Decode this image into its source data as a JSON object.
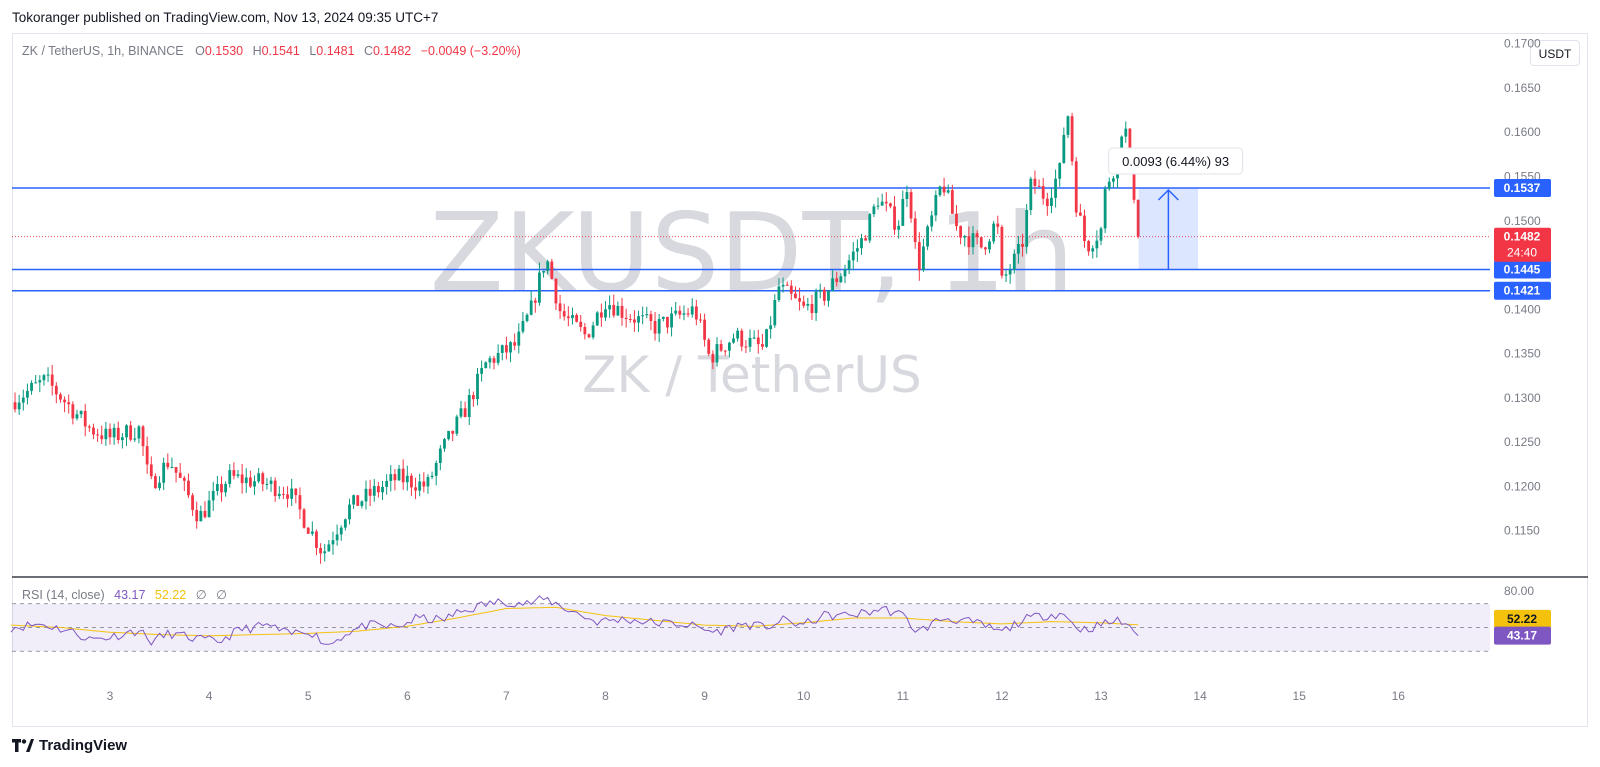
{
  "publisher": "Tokoranger published on TradingView.com, Nov 13, 2024 09:35 UTC+7",
  "legend": {
    "symbol": "ZK / TetherUS, 1h, BINANCE",
    "o_label": "O",
    "o": "0.1530",
    "h_label": "H",
    "h": "0.1541",
    "l_label": "L",
    "l": "0.1481",
    "c_label": "C",
    "c": "0.1482",
    "change": "−0.0049 (−3.20%)"
  },
  "currency": "USDT",
  "watermark": {
    "main": "ZKUSDT, 1h",
    "sub": "ZK / TetherUS"
  },
  "measure_label": "0.0093 (6.44%) 93",
  "countdown": "24:40",
  "rsi_legend": {
    "name": "RSI (14, close)",
    "rsi": "43.17",
    "ma": "52.22",
    "extra1": "∅",
    "extra2": "∅"
  },
  "footer": {
    "brand": "TradingView"
  },
  "colors": {
    "up": "#089981",
    "down": "#f23645",
    "level": "#2962ff",
    "rsi": "#7e57c2",
    "rsi_ma": "#f4c20d"
  },
  "chart_data": {
    "type": "candlestick",
    "interval": "1h",
    "price_axis": {
      "ticks": [
        "0.1700",
        "0.1650",
        "0.1600",
        "0.1550",
        "0.1500",
        "0.1450",
        "0.1400",
        "0.1350",
        "0.1300",
        "0.1250",
        "0.1200",
        "0.1150"
      ],
      "range": [
        0.111,
        0.172
      ]
    },
    "time_axis": {
      "ticks": [
        "3",
        "4",
        "5",
        "6",
        "7",
        "8",
        "9",
        "10",
        "11",
        "12",
        "13",
        "14",
        "15",
        "16"
      ]
    },
    "horizontal_levels": [
      {
        "price": 0.1537,
        "label": "0.1537"
      },
      {
        "price": 0.1445,
        "label": "0.1445"
      },
      {
        "price": 0.1421,
        "label": "0.1421"
      }
    ],
    "last_price": {
      "price": 0.1482,
      "label": "0.1482"
    },
    "price_anchors": [
      [
        2.0,
        0.1295
      ],
      [
        2.35,
        0.132
      ],
      [
        2.8,
        0.1265
      ],
      [
        3.0,
        0.1255
      ],
      [
        3.3,
        0.1265
      ],
      [
        3.4,
        0.12
      ],
      [
        3.6,
        0.123
      ],
      [
        3.9,
        0.1165
      ],
      [
        4.2,
        0.121
      ],
      [
        4.5,
        0.1205
      ],
      [
        4.8,
        0.1195
      ],
      [
        5.15,
        0.1125
      ],
      [
        5.4,
        0.1175
      ],
      [
        5.9,
        0.121
      ],
      [
        6.2,
        0.12
      ],
      [
        6.35,
        0.124
      ],
      [
        6.6,
        0.129
      ],
      [
        6.8,
        0.134
      ],
      [
        7.1,
        0.136
      ],
      [
        7.25,
        0.14
      ],
      [
        7.4,
        0.146
      ],
      [
        7.55,
        0.1395
      ],
      [
        7.8,
        0.137
      ],
      [
        8.0,
        0.141
      ],
      [
        8.2,
        0.1395
      ],
      [
        8.5,
        0.138
      ],
      [
        8.9,
        0.14
      ],
      [
        9.05,
        0.1345
      ],
      [
        9.3,
        0.137
      ],
      [
        9.6,
        0.1355
      ],
      [
        9.75,
        0.1425
      ],
      [
        10.0,
        0.14
      ],
      [
        10.2,
        0.1415
      ],
      [
        10.4,
        0.1445
      ],
      [
        10.6,
        0.148
      ],
      [
        10.75,
        0.1525
      ],
      [
        10.95,
        0.1495
      ],
      [
        11.05,
        0.1545
      ],
      [
        11.15,
        0.1445
      ],
      [
        11.4,
        0.1545
      ],
      [
        11.55,
        0.149
      ],
      [
        11.8,
        0.147
      ],
      [
        11.95,
        0.15
      ],
      [
        12.0,
        0.143
      ],
      [
        12.2,
        0.147
      ],
      [
        12.3,
        0.1545
      ],
      [
        12.45,
        0.1525
      ],
      [
        12.6,
        0.156
      ],
      [
        12.65,
        0.164
      ],
      [
        12.75,
        0.152
      ],
      [
        12.85,
        0.147
      ],
      [
        13.0,
        0.149
      ],
      [
        13.05,
        0.154
      ],
      [
        13.15,
        0.1565
      ],
      [
        13.2,
        0.1605
      ],
      [
        13.25,
        0.16
      ],
      [
        13.32,
        0.1545
      ],
      [
        13.38,
        0.1482
      ]
    ],
    "measure": {
      "from": 0.1445,
      "to": 0.1537,
      "text": "0.0093 (6.44%) 93"
    },
    "rsi": {
      "levels": [
        "80.00"
      ],
      "value": 43.17,
      "ma_value": 52.22,
      "anchors": [
        [
          2.0,
          50
        ],
        [
          2.3,
          53
        ],
        [
          2.6,
          47
        ],
        [
          2.8,
          40
        ],
        [
          3.0,
          42
        ],
        [
          3.3,
          48
        ],
        [
          3.4,
          38
        ],
        [
          3.6,
          45
        ],
        [
          3.9,
          40
        ],
        [
          4.1,
          38
        ],
        [
          4.3,
          48
        ],
        [
          4.6,
          52
        ],
        [
          4.8,
          44
        ],
        [
          5.0,
          48
        ],
        [
          5.2,
          35
        ],
        [
          5.4,
          46
        ],
        [
          5.6,
          52
        ],
        [
          5.9,
          50
        ],
        [
          6.1,
          58
        ],
        [
          6.35,
          56
        ],
        [
          6.5,
          62
        ],
        [
          6.8,
          70
        ],
        [
          7.0,
          72
        ],
        [
          7.2,
          70
        ],
        [
          7.4,
          74
        ],
        [
          7.6,
          66
        ],
        [
          7.9,
          55
        ],
        [
          8.2,
          57
        ],
        [
          8.5,
          54
        ],
        [
          8.8,
          53
        ],
        [
          9.1,
          46
        ],
        [
          9.4,
          53
        ],
        [
          9.6,
          50
        ],
        [
          9.8,
          56
        ],
        [
          10.0,
          52
        ],
        [
          10.2,
          60
        ],
        [
          10.4,
          60
        ],
        [
          10.6,
          62
        ],
        [
          10.8,
          66
        ],
        [
          11.0,
          60
        ],
        [
          11.15,
          46
        ],
        [
          11.4,
          58
        ],
        [
          11.6,
          56
        ],
        [
          11.8,
          52
        ],
        [
          12.0,
          46
        ],
        [
          12.2,
          56
        ],
        [
          12.4,
          60
        ],
        [
          12.6,
          62
        ],
        [
          12.8,
          48
        ],
        [
          13.0,
          52
        ],
        [
          13.15,
          56
        ],
        [
          13.3,
          52
        ],
        [
          13.38,
          43
        ]
      ],
      "ma_anchors": [
        [
          2.0,
          52
        ],
        [
          2.5,
          50
        ],
        [
          3.0,
          46
        ],
        [
          3.5,
          44
        ],
        [
          4.0,
          43
        ],
        [
          4.5,
          44
        ],
        [
          5.0,
          45
        ],
        [
          5.5,
          47
        ],
        [
          6.0,
          51
        ],
        [
          6.5,
          58
        ],
        [
          7.0,
          66
        ],
        [
          7.5,
          67
        ],
        [
          8.0,
          60
        ],
        [
          8.5,
          56
        ],
        [
          9.0,
          52
        ],
        [
          9.5,
          51
        ],
        [
          10.0,
          54
        ],
        [
          10.5,
          58
        ],
        [
          11.0,
          58
        ],
        [
          11.5,
          55
        ],
        [
          12.0,
          53
        ],
        [
          12.5,
          55
        ],
        [
          13.0,
          54
        ],
        [
          13.38,
          52.22
        ]
      ]
    }
  }
}
